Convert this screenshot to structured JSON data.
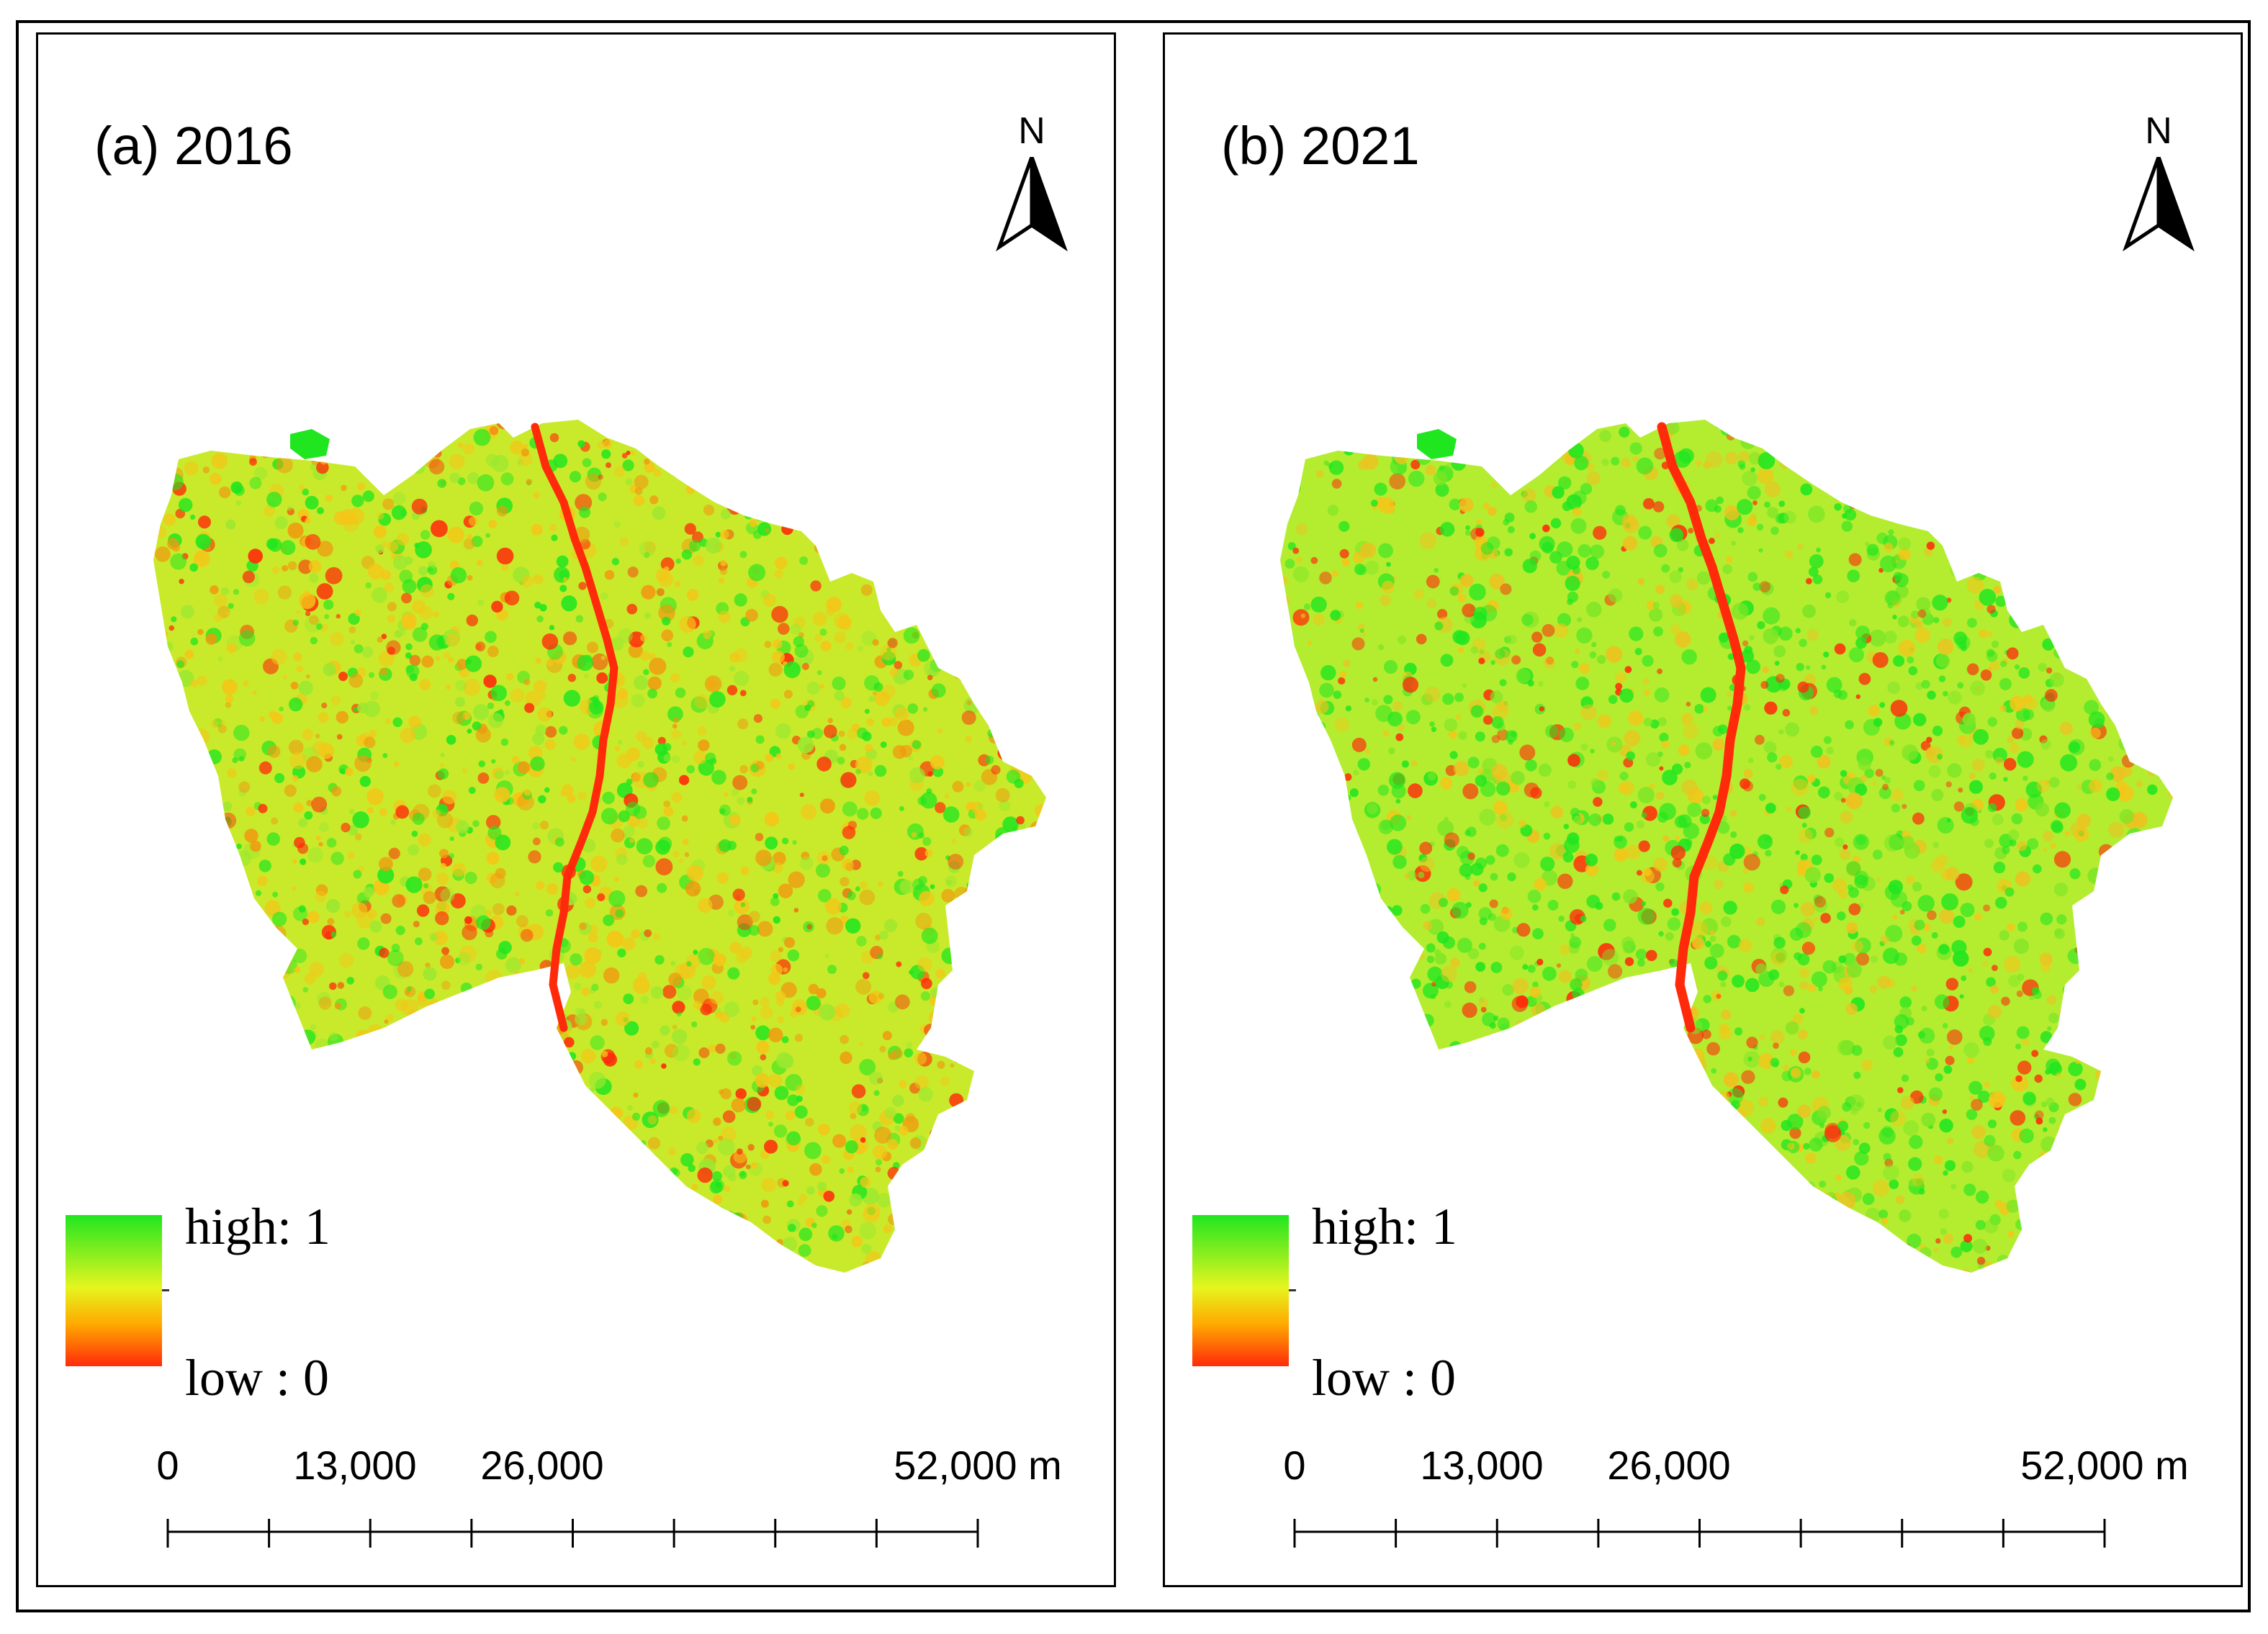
{
  "panels": [
    {
      "id": "a",
      "title": "(a) 2016",
      "north_label": "N",
      "legend": {
        "high_label": "high: 1",
        "low_label": "low : 0"
      },
      "scale": {
        "labels": [
          "0",
          "13,000",
          "26,000",
          "52,000 m"
        ],
        "divisions": 8
      },
      "colors": {
        "base": "#c9ea2a",
        "high": "#1fe61f",
        "low": "#ff2a0a",
        "mid": "#f5c518"
      }
    },
    {
      "id": "b",
      "title": "(b) 2021",
      "north_label": "N",
      "legend": {
        "high_label": "high: 1",
        "low_label": "low : 0"
      },
      "scale": {
        "labels": [
          "0",
          "13,000",
          "26,000",
          "52,000 m"
        ],
        "divisions": 8
      },
      "colors": {
        "base": "#b4ec30",
        "high": "#1fe61f",
        "low": "#ff2a0a",
        "mid": "#f5c518"
      }
    }
  ]
}
